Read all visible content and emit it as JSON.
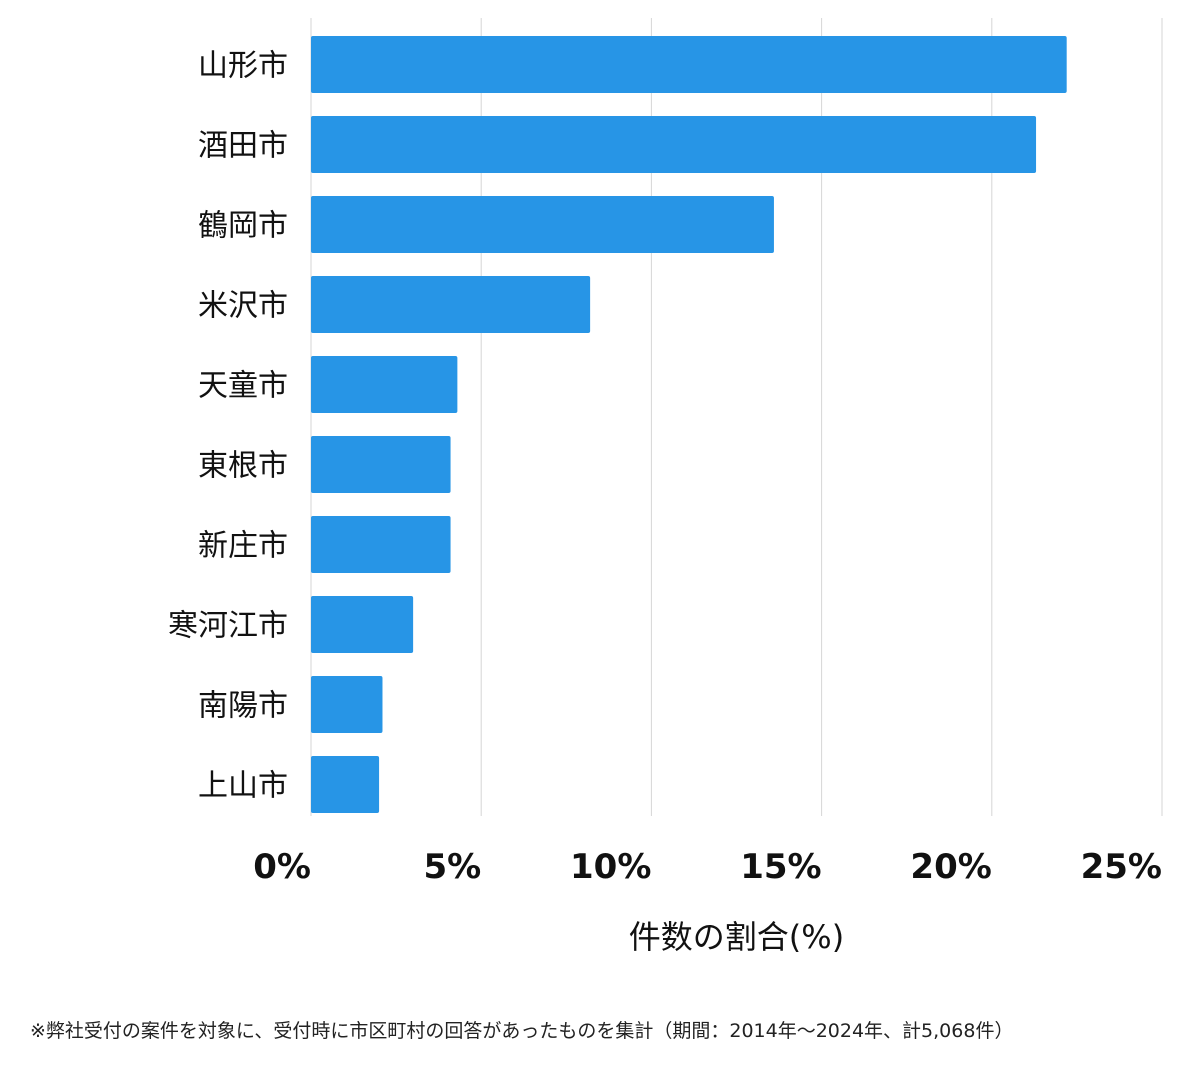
{
  "chart_data": {
    "type": "bar",
    "orientation": "horizontal",
    "categories": [
      "山形市",
      "酒田市",
      "鶴岡市",
      "米沢市",
      "天童市",
      "東根市",
      "新庄市",
      "寒河江市",
      "南陽市",
      "上山市"
    ],
    "values": [
      22.2,
      21.3,
      13.6,
      8.2,
      4.3,
      4.1,
      4.1,
      3.0,
      2.1,
      2.0
    ],
    "xlabel": "件数の割合(%)",
    "ylabel": "",
    "xlim": [
      0,
      25
    ],
    "xticks": [
      0,
      5,
      10,
      15,
      20,
      25
    ],
    "xtick_labels": [
      "0%",
      "5%",
      "10%",
      "15%",
      "20%",
      "25%"
    ],
    "grid": "vertical",
    "bar_color": "#2795e6"
  },
  "footnote": "※弊社受付の案件を対象に、受付時に市区町村の回答があったものを集計（期間：2014年〜2024年、計5,068件）"
}
